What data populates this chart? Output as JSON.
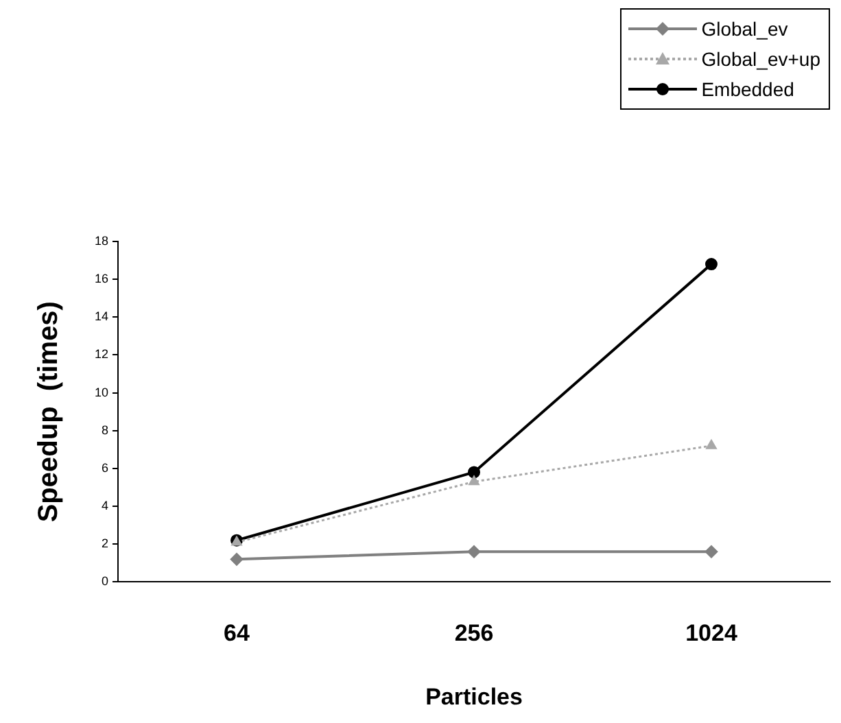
{
  "chart_data": {
    "type": "line",
    "xlabel": "Particles",
    "ylabel": "Speedup  (times)",
    "categories": [
      "64",
      "256",
      "1024"
    ],
    "series": [
      {
        "name": "Global_ev",
        "color": "#808080",
        "values": [
          1.2,
          1.6,
          1.6
        ],
        "marker": "diamond",
        "line_style": "solid"
      },
      {
        "name": "Global_ev+up",
        "color": "#a8a8a8",
        "values": [
          2.1,
          5.3,
          7.2
        ],
        "marker": "triangle",
        "line_style": "dotted"
      },
      {
        "name": "Embedded",
        "color": "#000000",
        "values": [
          2.2,
          5.8,
          16.8
        ],
        "marker": "circle",
        "line_style": "solid"
      }
    ],
    "ylim": [
      0,
      18
    ],
    "yticks": [
      0,
      2,
      4,
      6,
      8,
      10,
      12,
      14,
      16,
      18
    ],
    "grid": false,
    "legend": "top right"
  }
}
